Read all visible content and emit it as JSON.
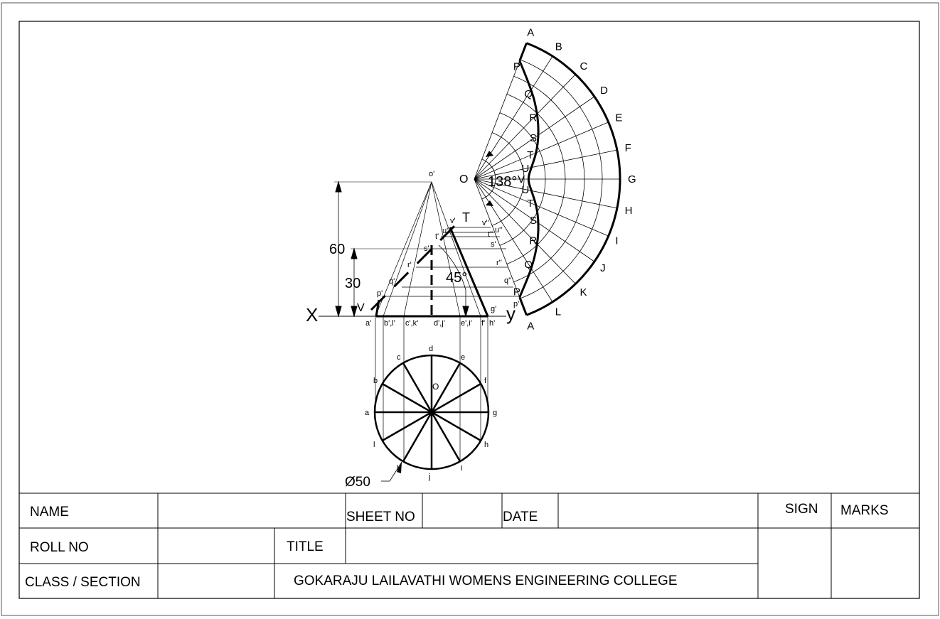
{
  "title_block": {
    "name": "NAME",
    "sheet_no": "SHEET NO",
    "date": "DATE",
    "sign": "SIGN",
    "marks": "MARKS",
    "roll_no": "ROLL NO",
    "title": "TITLE",
    "class_section": "CLASS / SECTION",
    "college": "GOKARAJU  LAILAVATHI  WOMENS  ENGINEERING  COLLEGE"
  },
  "elevation": {
    "x_label": "X",
    "y_label": "y",
    "apex": "o'",
    "base_labels": [
      "a'",
      "b',l'",
      "c',k'",
      "d',j'",
      "e',i'",
      "f'",
      "g'",
      "h'"
    ],
    "section_labels": [
      "p'",
      "q'",
      "r'",
      "s'",
      "t'",
      "u'",
      "v'"
    ],
    "projection_labels": [
      "v''",
      "u''",
      "t''",
      "s'",
      "r''",
      "q''",
      "p'"
    ],
    "cut_end_label": "T",
    "cut_start_label": "V",
    "dim_height": "60",
    "dim_cut": "30",
    "angle": "45°"
  },
  "plan": {
    "center": "O",
    "points": [
      "a",
      "b",
      "c",
      "d",
      "e",
      "f",
      "g",
      "h",
      "i",
      "j",
      "k",
      "l"
    ],
    "diameter": "Ø50"
  },
  "development": {
    "apex": "O",
    "angle": "138°",
    "arc_labels": [
      "A",
      "B",
      "C",
      "D",
      "E",
      "F",
      "G",
      "H",
      "I",
      "J",
      "K",
      "L",
      "A"
    ],
    "curve_labels": [
      "P",
      "Q",
      "R",
      "S",
      "T",
      "U",
      "V",
      "U",
      "T",
      "S",
      "R",
      "Q",
      "P"
    ]
  }
}
